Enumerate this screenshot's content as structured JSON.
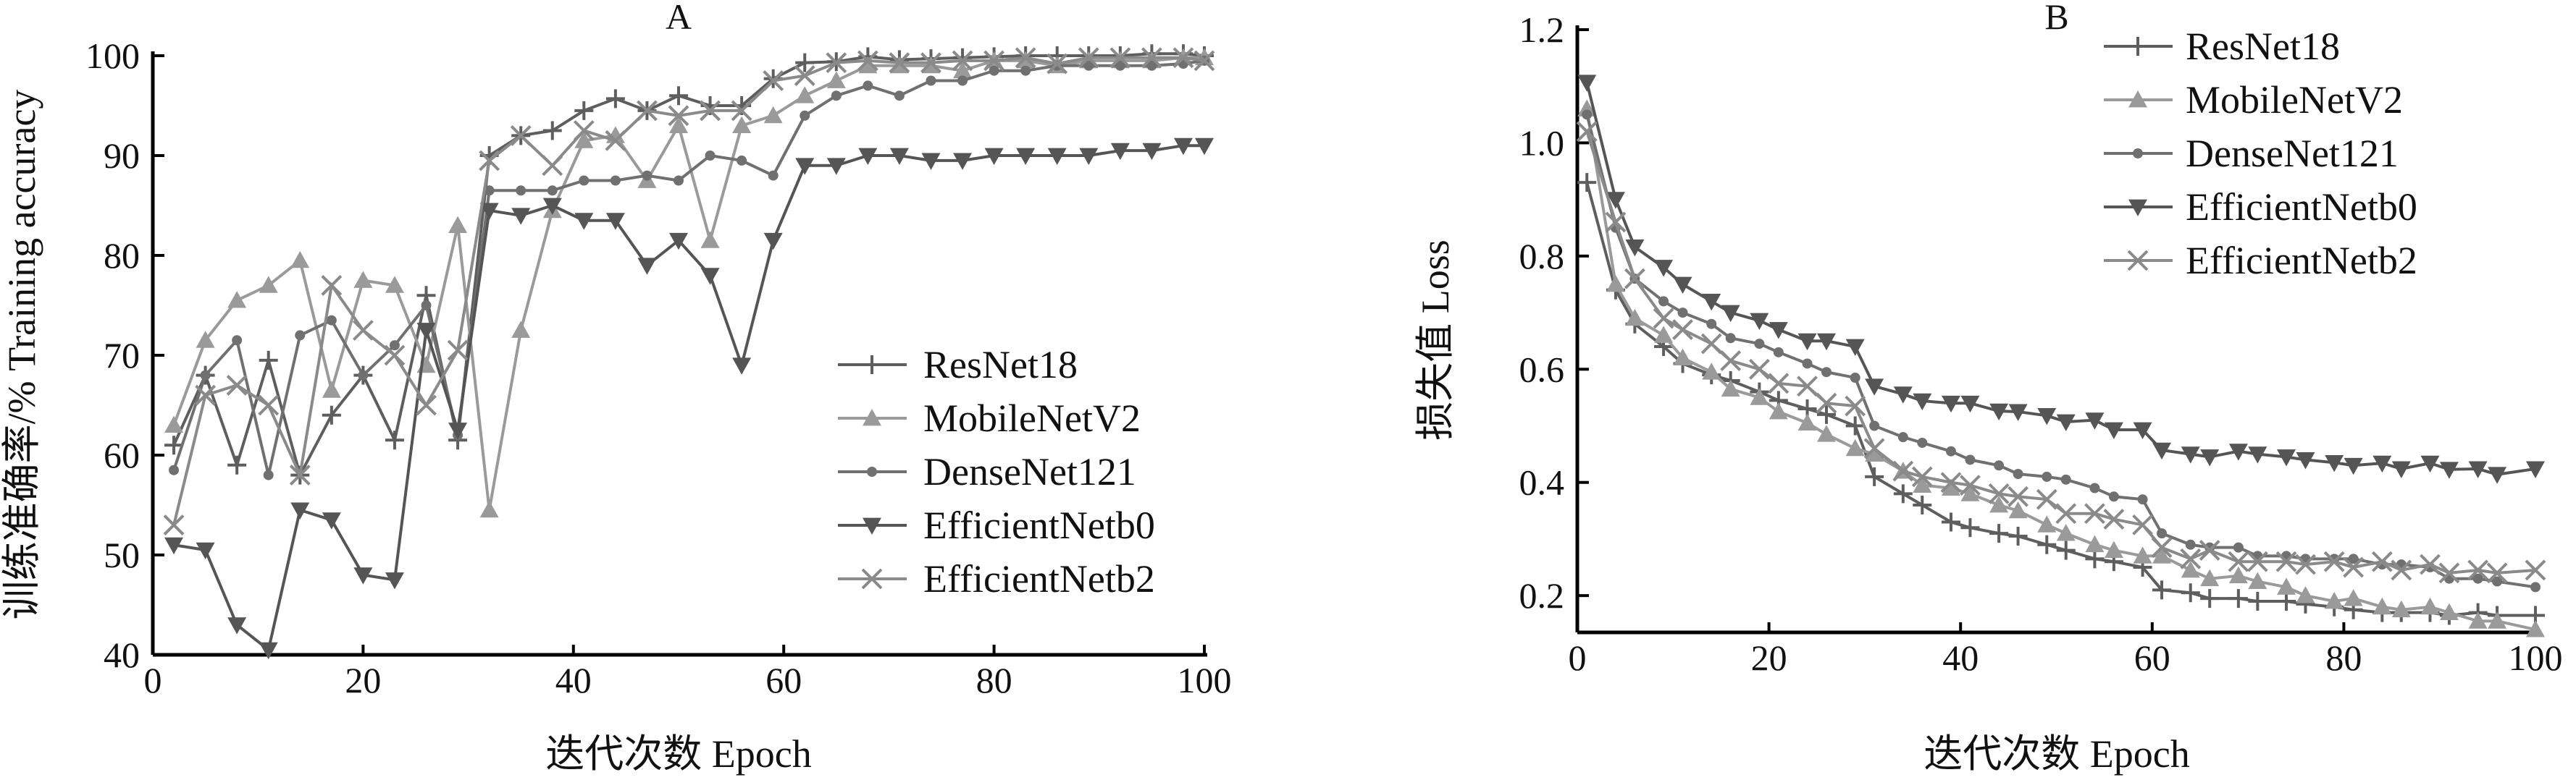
{
  "chart_data": [
    {
      "type": "line",
      "title": "A",
      "xlabel": "迭代次数  Epoch",
      "ylabel": "训练准确率/% Training accuracy",
      "xlim": [
        0,
        100
      ],
      "ylim": [
        40,
        100
      ],
      "xticks": [
        "0",
        "20",
        "40",
        "60",
        "80",
        "100"
      ],
      "yticks": [
        "40",
        "50",
        "60",
        "70",
        "80",
        "90",
        "100"
      ],
      "grid": false,
      "legend_position": "center-right",
      "x": [
        2,
        5,
        8,
        11,
        14,
        17,
        20,
        23,
        26,
        29,
        32,
        35,
        38,
        41,
        44,
        47,
        50,
        53,
        56,
        59,
        62,
        65,
        68,
        71,
        74,
        77,
        80,
        83,
        86,
        89,
        92,
        95,
        98,
        100
      ],
      "series": [
        {
          "name": "ResNet18",
          "color": "#5e5e5e",
          "marker": "plus",
          "values": [
            61,
            68,
            59,
            69.5,
            58,
            64,
            68,
            61.5,
            76,
            61.5,
            90,
            92,
            92.5,
            94.5,
            95.7,
            94.5,
            96,
            95,
            95,
            97.7,
            99.3,
            99.4,
            99.9,
            99.6,
            99.7,
            99.8,
            99.9,
            100,
            100,
            100,
            100,
            100.2,
            100.2,
            100
          ]
        },
        {
          "name": "MobileNetV2",
          "color": "#9a9a9a",
          "marker": "triangle-up",
          "values": [
            63,
            71.5,
            75.5,
            77,
            79.5,
            66.5,
            77.5,
            77,
            69,
            83,
            54.5,
            72.5,
            84.5,
            91.5,
            92,
            87.5,
            93,
            81.5,
            93,
            94,
            96,
            97.5,
            99,
            99,
            99,
            98.5,
            99.5,
            99.5,
            99,
            99.5,
            99.5,
            99.5,
            99.8,
            99.8
          ]
        },
        {
          "name": "DenseNet121",
          "color": "#707070",
          "marker": "dot",
          "values": [
            58.5,
            68,
            71.5,
            58,
            72,
            73.5,
            68,
            71,
            75,
            62,
            86.5,
            86.5,
            86.5,
            87.5,
            87.5,
            88,
            87.5,
            90,
            89.5,
            88,
            94,
            96,
            97,
            96,
            97.5,
            97.5,
            98.5,
            98.5,
            99,
            99,
            99,
            99,
            99.2,
            99.5
          ]
        },
        {
          "name": "EfficientNetb0",
          "color": "#555555",
          "marker": "triangle-down",
          "values": [
            51,
            50.5,
            43,
            40.5,
            54.5,
            53.5,
            48,
            47.5,
            72.5,
            62.5,
            84.5,
            84,
            85,
            83.5,
            83.5,
            79,
            81.5,
            78,
            69,
            81.5,
            89,
            89,
            90,
            90,
            89.5,
            89.5,
            90,
            90,
            90,
            90,
            90.5,
            90.5,
            91,
            91
          ]
        },
        {
          "name": "EfficientNetb2",
          "color": "#8a8a8a",
          "marker": "x",
          "values": [
            53,
            66,
            67,
            65,
            58,
            77,
            72.5,
            70,
            65,
            70.5,
            89.5,
            92,
            89,
            92.5,
            91.5,
            94.5,
            94,
            94.5,
            94.5,
            97.5,
            98,
            99.3,
            99.5,
            99.3,
            99.3,
            99.5,
            99.5,
            99.8,
            99.2,
            99.8,
            99.8,
            99.8,
            99.8,
            99.5
          ]
        }
      ]
    },
    {
      "type": "line",
      "title": "B",
      "xlabel": "迭代次数  Epoch",
      "ylabel": "损失值  Loss",
      "xlim": [
        0,
        100
      ],
      "ylim": [
        0.135,
        1.2
      ],
      "xticks": [
        "0",
        "20",
        "40",
        "60",
        "80",
        "100"
      ],
      "yticks": [
        "0.2",
        "0.4",
        "0.6",
        "0.8",
        "1.0",
        "1.2"
      ],
      "grid": false,
      "legend_position": "top-right",
      "x": [
        1,
        4,
        6,
        9,
        11,
        14,
        16,
        19,
        21,
        24,
        26,
        29,
        31,
        34,
        36,
        39,
        41,
        44,
        46,
        49,
        51,
        54,
        56,
        59,
        61,
        64,
        66,
        69,
        71,
        74,
        76,
        79,
        81,
        84,
        86,
        89,
        91,
        94,
        96,
        100
      ],
      "series": [
        {
          "name": "ResNet18",
          "color": "#5e5e5e",
          "marker": "plus",
          "values": [
            0.93,
            0.74,
            0.68,
            0.64,
            0.61,
            0.59,
            0.58,
            0.56,
            0.545,
            0.53,
            0.52,
            0.5,
            0.41,
            0.38,
            0.36,
            0.33,
            0.32,
            0.31,
            0.305,
            0.29,
            0.28,
            0.265,
            0.26,
            0.25,
            0.21,
            0.205,
            0.195,
            0.195,
            0.19,
            0.19,
            0.185,
            0.18,
            0.175,
            0.17,
            0.17,
            0.17,
            0.165,
            0.17,
            0.165,
            0.165
          ]
        },
        {
          "name": "MobileNetV2",
          "color": "#9a9a9a",
          "marker": "triangle-up",
          "values": [
            1.06,
            0.75,
            0.69,
            0.66,
            0.62,
            0.595,
            0.565,
            0.55,
            0.525,
            0.505,
            0.485,
            0.46,
            0.45,
            0.42,
            0.395,
            0.39,
            0.38,
            0.36,
            0.35,
            0.325,
            0.31,
            0.29,
            0.28,
            0.27,
            0.27,
            0.245,
            0.23,
            0.235,
            0.225,
            0.215,
            0.2,
            0.19,
            0.195,
            0.18,
            0.175,
            0.18,
            0.17,
            0.155,
            0.155,
            0.14
          ]
        },
        {
          "name": "DenseNet121",
          "color": "#707070",
          "marker": "dot",
          "values": [
            1.05,
            0.85,
            0.76,
            0.72,
            0.7,
            0.68,
            0.655,
            0.645,
            0.63,
            0.61,
            0.595,
            0.585,
            0.5,
            0.48,
            0.47,
            0.455,
            0.44,
            0.43,
            0.415,
            0.41,
            0.405,
            0.39,
            0.375,
            0.37,
            0.31,
            0.29,
            0.285,
            0.285,
            0.27,
            0.27,
            0.265,
            0.265,
            0.265,
            0.255,
            0.255,
            0.25,
            0.23,
            0.23,
            0.225,
            0.215
          ]
        },
        {
          "name": "EfficientNetb0",
          "color": "#555555",
          "marker": "triangle-down",
          "values": [
            1.107,
            0.9,
            0.816,
            0.78,
            0.75,
            0.72,
            0.7,
            0.686,
            0.67,
            0.65,
            0.65,
            0.64,
            0.57,
            0.556,
            0.544,
            0.54,
            0.54,
            0.526,
            0.525,
            0.518,
            0.507,
            0.51,
            0.493,
            0.493,
            0.457,
            0.45,
            0.445,
            0.455,
            0.45,
            0.445,
            0.44,
            0.435,
            0.43,
            0.434,
            0.424,
            0.434,
            0.423,
            0.424,
            0.414,
            0.424
          ]
        },
        {
          "name": "EfficientNetb2",
          "color": "#8a8a8a",
          "marker": "x",
          "values": [
            1.02,
            0.86,
            0.76,
            0.69,
            0.67,
            0.645,
            0.615,
            0.6,
            0.575,
            0.57,
            0.54,
            0.535,
            0.46,
            0.42,
            0.41,
            0.4,
            0.395,
            0.38,
            0.375,
            0.37,
            0.345,
            0.345,
            0.335,
            0.325,
            0.285,
            0.265,
            0.28,
            0.26,
            0.26,
            0.26,
            0.255,
            0.26,
            0.25,
            0.26,
            0.245,
            0.255,
            0.24,
            0.245,
            0.24,
            0.245
          ]
        }
      ]
    }
  ]
}
